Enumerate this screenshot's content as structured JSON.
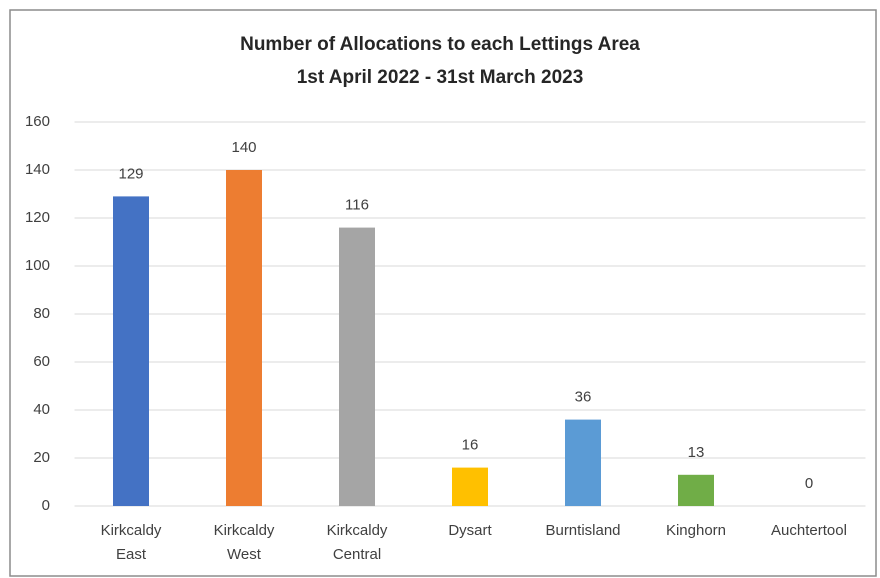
{
  "chart_data": {
    "type": "bar",
    "title": "Number of Allocations to each Lettings Area",
    "subtitle": "1st April 2022 - 31st March 2023",
    "categories": [
      "Kirkcaldy East",
      "Kirkcaldy West",
      "Kirkcaldy Central",
      "Dysart",
      "Burntisland",
      "Kinghorn",
      "Auchtertool"
    ],
    "values": [
      129,
      140,
      116,
      16,
      36,
      13,
      0
    ],
    "colors": [
      "#4472c4",
      "#ed7d31",
      "#a5a5a5",
      "#ffc000",
      "#5b9bd5",
      "#70ad47",
      "#264478"
    ],
    "ylim": [
      0,
      160
    ],
    "yticks": [
      0,
      20,
      40,
      60,
      80,
      100,
      120,
      140,
      160
    ],
    "grid": true
  }
}
